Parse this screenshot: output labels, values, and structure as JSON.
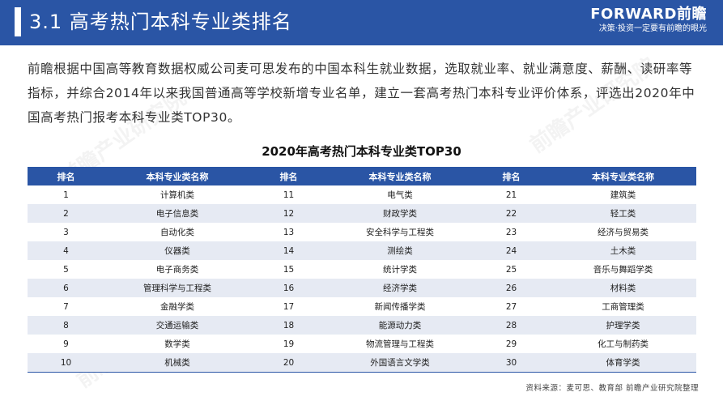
{
  "header": {
    "title": "3.1  高考热门本科专业类排名",
    "logo": "FORWARD前瞻",
    "slogan": "决策·投资一定要有前瞻的眼光"
  },
  "intro": "前瞻根据中国高等教育数据权威公司麦可思发布的中国本科生就业数据，选取就业率、就业满意度、薪酬、读研率等指标，并综合2014年以来我国普通高等学校新增专业名单，建立一套高考热门本科专业评价体系，评选出2020年中国高考热门报考本科专业类TOP30。",
  "table": {
    "title": "2020年高考热门本科专业类TOP30",
    "headers": [
      "排名",
      "本科专业类名称",
      "排名",
      "本科专业类名称",
      "排名",
      "本科专业类名称"
    ],
    "rows": [
      [
        "1",
        "计算机类",
        "11",
        "电气类",
        "21",
        "建筑类"
      ],
      [
        "2",
        "电子信息类",
        "12",
        "财政学类",
        "22",
        "轻工类"
      ],
      [
        "3",
        "自动化类",
        "13",
        "安全科学与工程类",
        "23",
        "经济与贸易类"
      ],
      [
        "4",
        "仪器类",
        "14",
        "测绘类",
        "24",
        "土木类"
      ],
      [
        "5",
        "电子商务类",
        "15",
        "统计学类",
        "25",
        "音乐与舞蹈学类"
      ],
      [
        "6",
        "管理科学与工程类",
        "16",
        "经济学类",
        "26",
        "材料类"
      ],
      [
        "7",
        "金融学类",
        "17",
        "新闻传播学类",
        "27",
        "工商管理类"
      ],
      [
        "8",
        "交通运输类",
        "18",
        "能源动力类",
        "28",
        "护理学类"
      ],
      [
        "9",
        "数学类",
        "19",
        "物流管理与工程类",
        "29",
        "化工与制药类"
      ],
      [
        "10",
        "机械类",
        "20",
        "外国语言文学类",
        "30",
        "体育学类"
      ]
    ]
  },
  "source": "资料来源：麦可思、教育部  前瞻产业研究院整理",
  "watermark": "前瞻产业研究院",
  "colors": {
    "header": "#2a55a5",
    "row_alt": "#e6eaf3"
  }
}
